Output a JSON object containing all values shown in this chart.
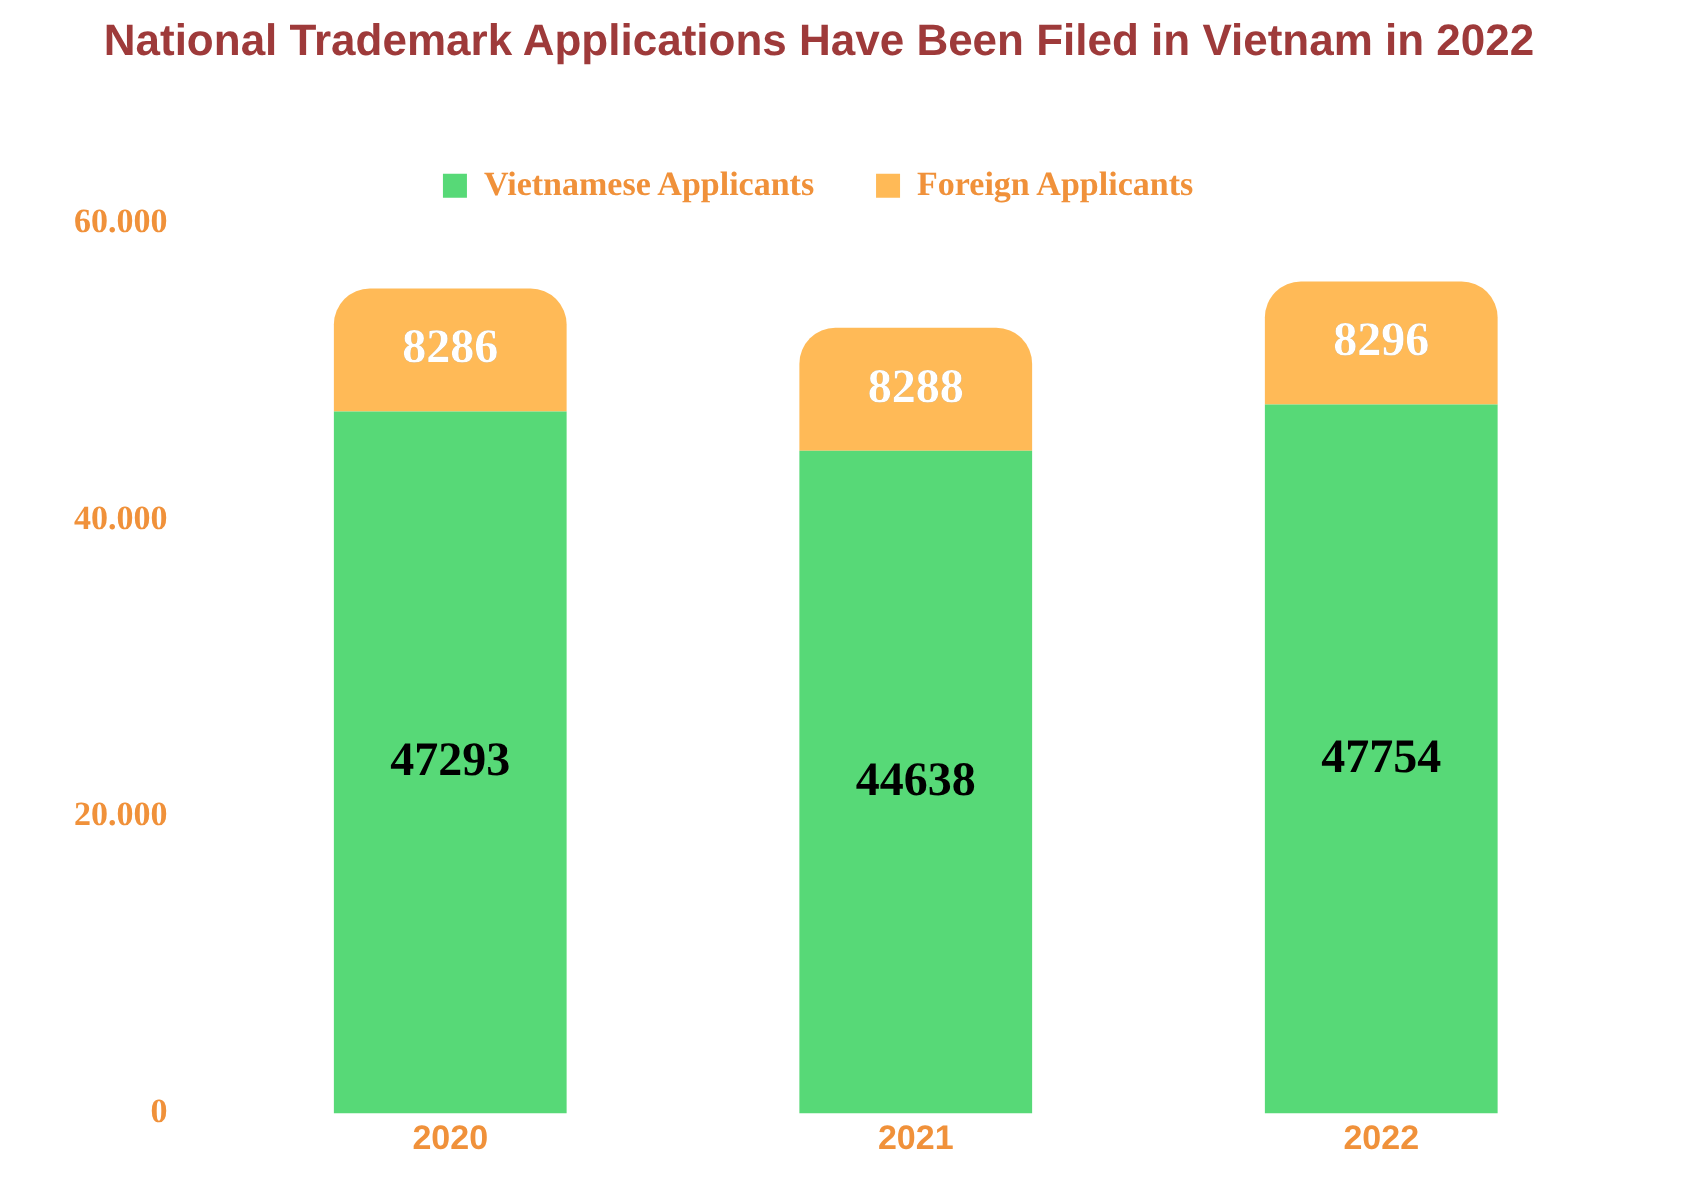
{
  "chart_data": {
    "type": "bar",
    "title": "National Trademark Applications Have Been Filed in Vietnam in 2022",
    "categories": [
      "2020",
      "2021",
      "2022"
    ],
    "series": [
      {
        "name": "Vietnamese Applicants",
        "color": "#57d977",
        "values": [
          47293,
          44638,
          47754
        ]
      },
      {
        "name": "Foreign Applicants",
        "color": "#ffba57",
        "values": [
          8286,
          8288,
          8296
        ]
      }
    ],
    "stacked": true,
    "data_labels": true,
    "legend": "top",
    "grid": false,
    "ylim": [
      0,
      60000
    ],
    "yticks": [
      {
        "value": 0,
        "label": "0"
      },
      {
        "value": 20000,
        "label": "20.000"
      },
      {
        "value": 40000,
        "label": "40.000"
      },
      {
        "value": 60000,
        "label": "60.000"
      }
    ]
  }
}
